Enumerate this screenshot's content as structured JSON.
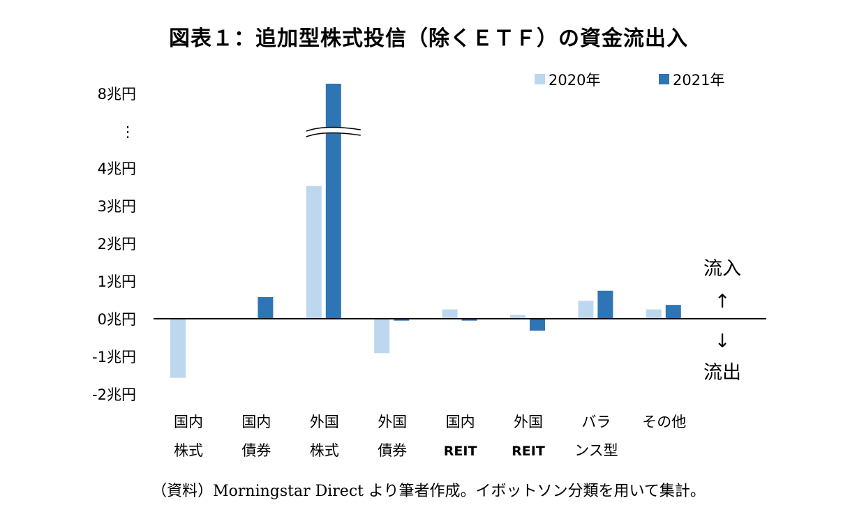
{
  "chart_data": {
    "type": "bar",
    "title": "図表１：追加型株式投信（除くＥＴＦ）の資金流出入",
    "categories": [
      [
        "国内",
        "株式"
      ],
      [
        "国内",
        "債券"
      ],
      [
        "外国",
        "株式"
      ],
      [
        "外国",
        "債券"
      ],
      [
        "国内",
        "REIT"
      ],
      [
        "外国",
        "REIT"
      ],
      [
        "バラ",
        "ンス型"
      ],
      [
        "その他",
        ""
      ]
    ],
    "series": [
      {
        "name": "2020年",
        "color": "#bdd7ee",
        "values": [
          -1.58,
          0.0,
          3.55,
          -0.92,
          0.25,
          0.1,
          0.48,
          0.25
        ]
      },
      {
        "name": "2021年",
        "color": "#2e75b6",
        "values": [
          0.0,
          0.58,
          8.2,
          -0.05,
          -0.05,
          -0.32,
          0.75,
          0.37
        ]
      }
    ],
    "yticks": [
      "8兆円",
      "⋮",
      "4兆円",
      "3兆円",
      "2兆円",
      "1兆円",
      "0兆円",
      "-1兆円",
      "-2兆円"
    ],
    "ylim": [
      -2,
      8
    ],
    "axis_break": "between 4兆円 and 8兆円",
    "legend_position": "top-right",
    "grid": false,
    "annotations": {
      "inflow": "流入",
      "outflow": "流出",
      "up_arrow": "↑",
      "down_arrow": "↓"
    }
  },
  "source_note": "（資料）Morningstar Direct より筆者作成。イボットソン分類を用いて集計。"
}
